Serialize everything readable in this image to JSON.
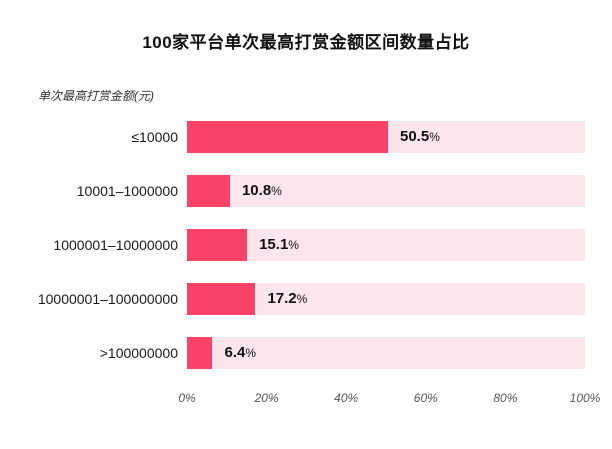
{
  "title": "100家平台单次最高打赏金额区间数量占比",
  "axis_label": "单次最高打赏金额(元)",
  "colors": {
    "bar": "#fa4268",
    "track": "#fce5eb",
    "title_text": "#111111",
    "tick_text": "#555555"
  },
  "chart_data": {
    "type": "bar",
    "orientation": "horizontal",
    "title": "100家平台单次最高打赏金额区间数量占比",
    "xlabel": "",
    "ylabel": "单次最高打赏金额(元)",
    "categories": [
      "≤10000",
      "10001–1000000",
      "1000001–10000000",
      "10000001–100000000",
      ">100000000"
    ],
    "values": [
      50.5,
      10.8,
      15.1,
      17.2,
      6.4
    ],
    "value_labels": [
      "50.5",
      "10.8",
      "15.1",
      "17.2",
      "6.4"
    ],
    "value_suffix": "%",
    "xlim": [
      0,
      100
    ],
    "x_ticks": [
      0,
      20,
      40,
      60,
      80,
      100
    ],
    "x_tick_labels": [
      "0%",
      "20%",
      "40%",
      "60%",
      "80%",
      "100%"
    ],
    "grid": false,
    "legend": "none"
  }
}
